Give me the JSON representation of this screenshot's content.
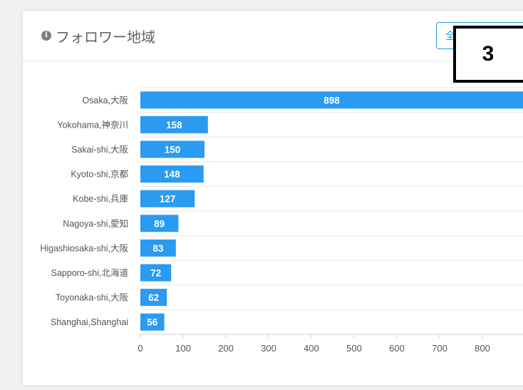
{
  "card": {
    "title": "フォロワー地域",
    "scope_button_label": "全"
  },
  "step_badge": "3",
  "colors": {
    "bar": "#2a9bf0",
    "accent": "#2a9bd8",
    "gridline": "#e6e6e6",
    "axis": "#c7ccd1"
  },
  "icons": {
    "title_icon": "info-icon"
  },
  "chart_data": {
    "type": "bar",
    "orientation": "horizontal",
    "title": "フォロワー地域",
    "categories": [
      "Osaka,大阪",
      "Yokohama,神奈川",
      "Sakai-shi,大阪",
      "Kyoto-shi,京都",
      "Kobe-shi,兵庫",
      "Nagoya-shi,愛知",
      "Higashiosaka-shi,大阪",
      "Sapporo-shi,北海道",
      "Toyonaka-shi,大阪",
      "Shanghai,Shanghai"
    ],
    "values": [
      898,
      158,
      150,
      148,
      127,
      89,
      83,
      72,
      62,
      56
    ],
    "xlim": [
      0,
      900
    ],
    "xticks": [
      0,
      100,
      200,
      300,
      400,
      500,
      600,
      700,
      800
    ],
    "data_labels": true,
    "grid": true,
    "xlabel": "",
    "ylabel": ""
  }
}
